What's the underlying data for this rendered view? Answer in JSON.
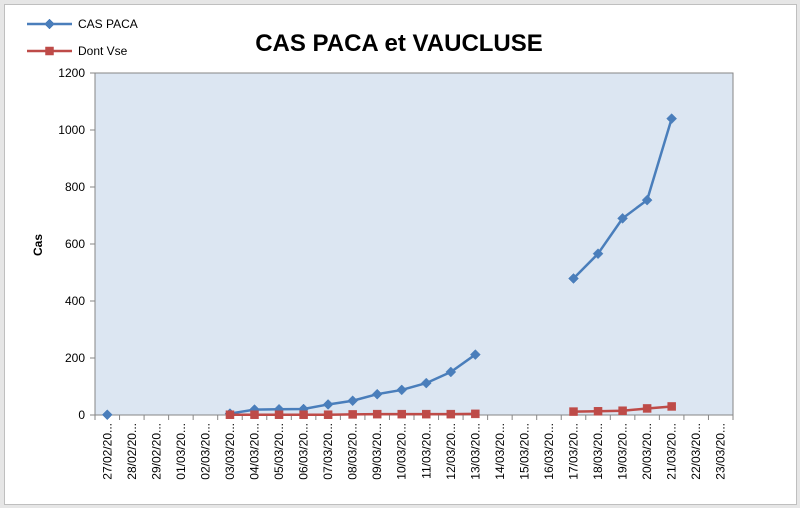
{
  "chart_data": {
    "type": "line",
    "title": "CAS PACA et VAUCLUSE",
    "ylabel": "Cas",
    "xlabel": "",
    "ylim": [
      0,
      1200
    ],
    "yticks": [
      0,
      200,
      400,
      600,
      800,
      1000,
      1200
    ],
    "grid": false,
    "legend_position": "top-left",
    "categories": [
      "27/02/20...",
      "28/02/20...",
      "29/02/20...",
      "01/03/20...",
      "02/03/20...",
      "03/03/20...",
      "04/03/20...",
      "05/03/20...",
      "06/03/20...",
      "07/03/20...",
      "08/03/20...",
      "09/03/20...",
      "10/03/20...",
      "11/03/20...",
      "12/03/20...",
      "13/03/20...",
      "14/03/20...",
      "15/03/20...",
      "16/03/20...",
      "17/03/20...",
      "18/03/20...",
      "19/03/20...",
      "20/03/20...",
      "21/03/20...",
      "22/03/20...",
      "23/03/20..."
    ],
    "series": [
      {
        "name": "CAS PACA",
        "color": "#4a7ebb",
        "marker": "diamond",
        "values": [
          1,
          null,
          null,
          null,
          null,
          5,
          19,
          20,
          21,
          37,
          50,
          73,
          88,
          112,
          151,
          212,
          null,
          null,
          null,
          479,
          566,
          690,
          754,
          1040,
          null,
          null
        ]
      },
      {
        "name": "Dont Vse",
        "color": "#be4b48",
        "marker": "square",
        "values": [
          null,
          null,
          null,
          null,
          null,
          1,
          1,
          1,
          1,
          1,
          2,
          3,
          3,
          3,
          3,
          4,
          null,
          null,
          null,
          12,
          13,
          15,
          23,
          30,
          null,
          null
        ]
      }
    ],
    "colors": {
      "plot_background": "#dce6f2",
      "axis": "#868686"
    }
  }
}
